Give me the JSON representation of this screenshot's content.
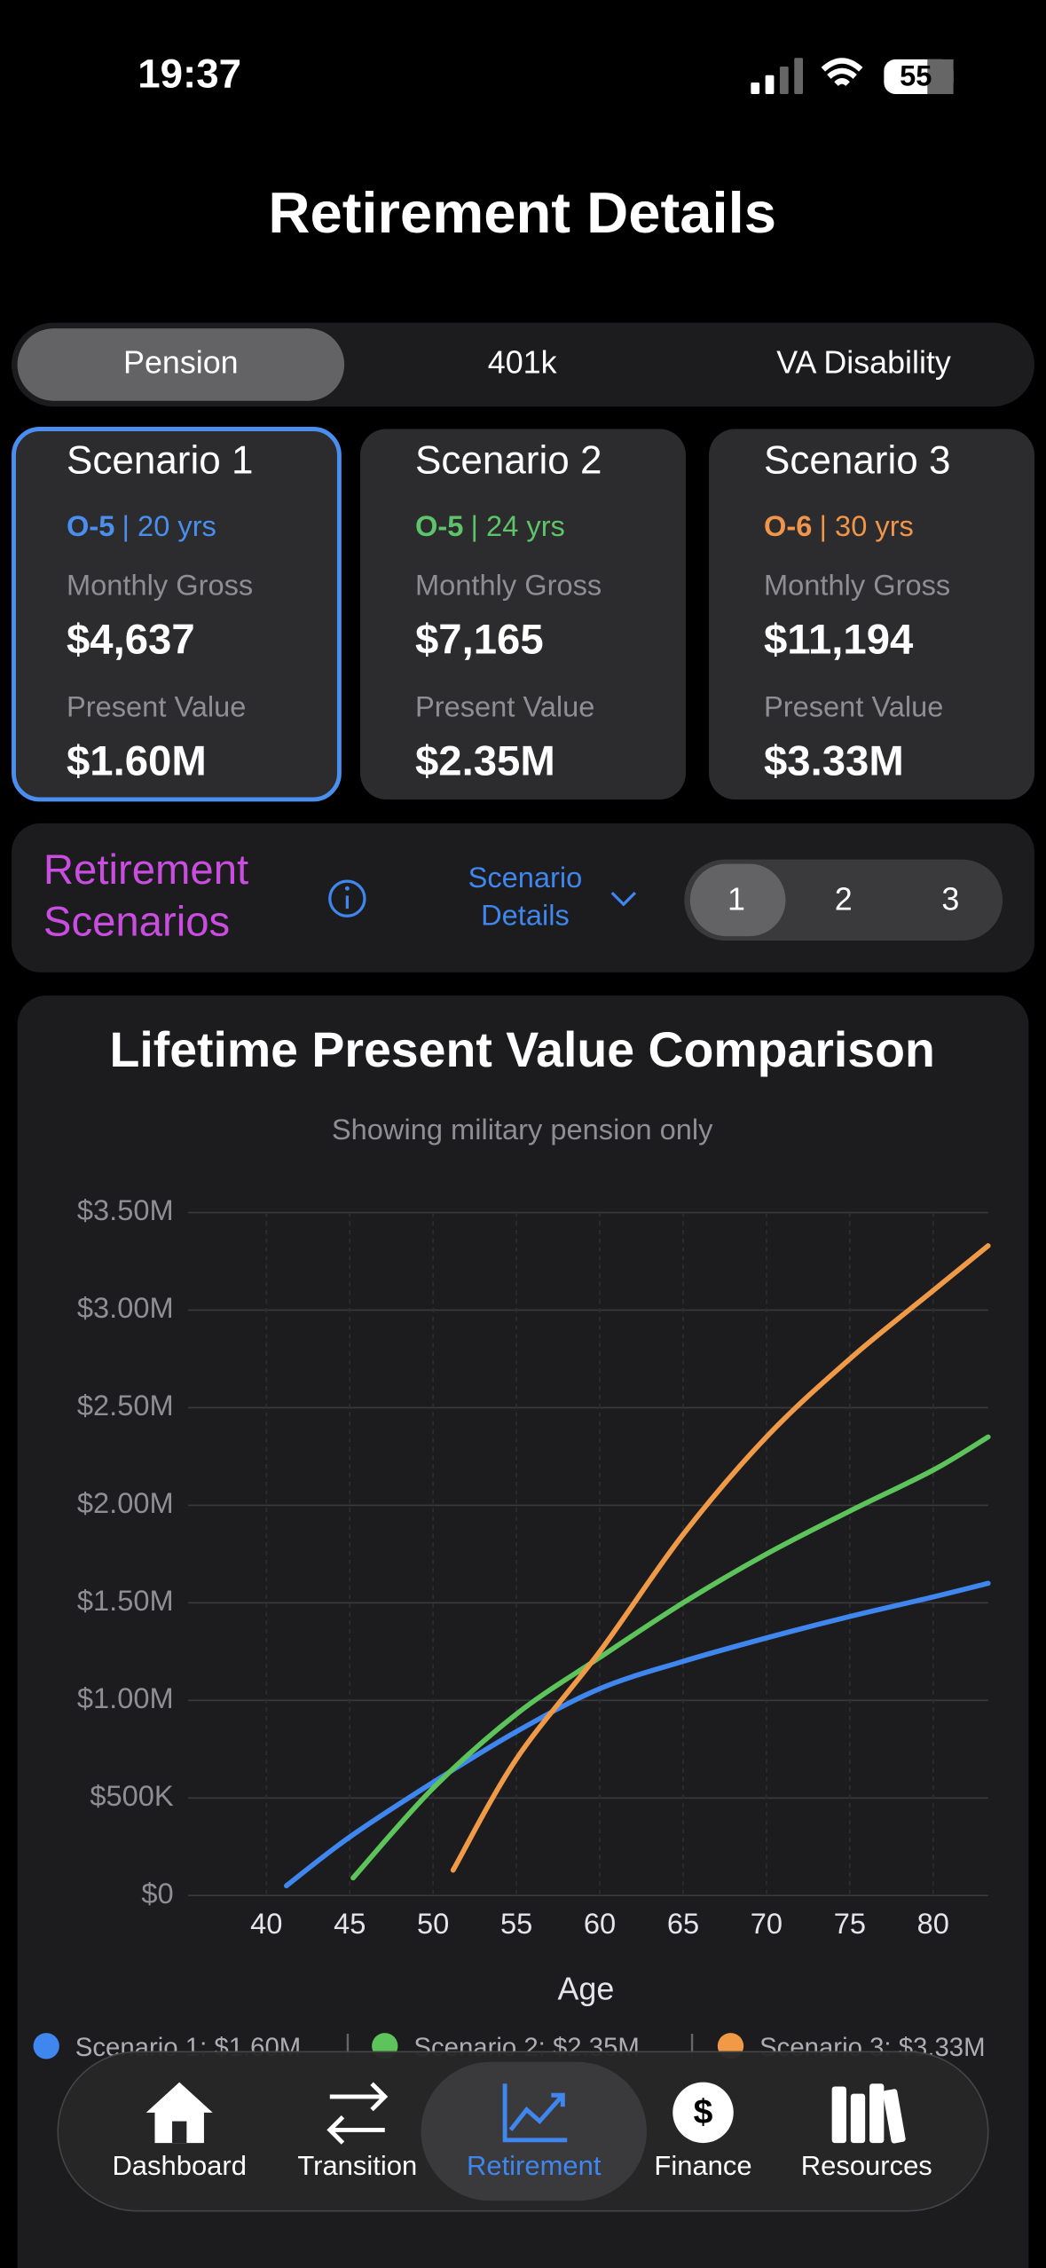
{
  "status_bar": {
    "time": "19:37",
    "battery": "55"
  },
  "header": {
    "title": "Retirement Details"
  },
  "tabs": {
    "items": [
      "Pension",
      "401k",
      "VA Disability"
    ],
    "selected": 0
  },
  "cards": [
    {
      "title": "Scenario 1",
      "rank": "O-5",
      "service": "| 20 yrs",
      "color": "#4a8ff0",
      "gross_label": "Monthly Gross",
      "gross": "$4,637",
      "pv_label": "Present Value",
      "pv": "$1.60M"
    },
    {
      "title": "Scenario 2",
      "rank": "O-5",
      "service": "| 24 yrs",
      "color": "#5ec46a",
      "gross_label": "Monthly Gross",
      "gross": "$7,165",
      "pv_label": "Present Value",
      "pv": "$2.35M"
    },
    {
      "title": "Scenario 3",
      "rank": "O-6",
      "service": "| 30 yrs",
      "color": "#f0954a",
      "gross_label": "Monthly Gross",
      "gross": "$11,194",
      "pv_label": "Present Value",
      "pv": "$3.33M"
    }
  ],
  "scenarios_bar": {
    "title_line1": "Retirement",
    "title_line2": "Scenarios",
    "details_line1": "Scenario",
    "details_line2": "Details",
    "options": [
      "1",
      "2",
      "3"
    ],
    "selected": 0
  },
  "chart_data": {
    "type": "line",
    "title": "Lifetime Present Value Comparison",
    "subtitle": "Showing military pension only",
    "x_label": "Age",
    "xlim": [
      35.3,
      83.3
    ],
    "xticks": [
      40,
      45,
      50,
      55,
      60,
      65,
      70,
      75,
      80
    ],
    "ylim": [
      0,
      3500000
    ],
    "yticks": [
      {
        "value": 0,
        "label": "$0"
      },
      {
        "value": 500000,
        "label": "$500K"
      },
      {
        "value": 1000000,
        "label": "$1.00M"
      },
      {
        "value": 1500000,
        "label": "$1.50M"
      },
      {
        "value": 2000000,
        "label": "$2.00M"
      },
      {
        "value": 2500000,
        "label": "$2.50M"
      },
      {
        "value": 3000000,
        "label": "$3.00M"
      },
      {
        "value": 3500000,
        "label": "$3.50M"
      }
    ],
    "grid": true,
    "series": [
      {
        "name": "Scenario 1: $1.60M",
        "color": "#3f86ee",
        "x": [
          41.2,
          45,
          50,
          55,
          60,
          65,
          70,
          75,
          80,
          83.3
        ],
        "values": [
          50000,
          300000,
          580000,
          840000,
          1060000,
          1200000,
          1320000,
          1430000,
          1530000,
          1600000
        ]
      },
      {
        "name": "Scenario 2: $2.35M",
        "color": "#5cc45a",
        "x": [
          45.2,
          50,
          55,
          60,
          65,
          70,
          75,
          80,
          83.3
        ],
        "values": [
          90000,
          550000,
          930000,
          1220000,
          1500000,
          1750000,
          1970000,
          2180000,
          2350000
        ]
      },
      {
        "name": "Scenario 3: $3.33M",
        "color": "#f09a48",
        "x": [
          51.2,
          55,
          60,
          65,
          70,
          75,
          80,
          83.3
        ],
        "values": [
          130000,
          700000,
          1250000,
          1850000,
          2350000,
          2750000,
          3100000,
          3330000
        ]
      }
    ]
  },
  "tab_bar": {
    "items": [
      "Dashboard",
      "Transition",
      "Retirement",
      "Finance",
      "Resources"
    ],
    "selected": 2
  }
}
